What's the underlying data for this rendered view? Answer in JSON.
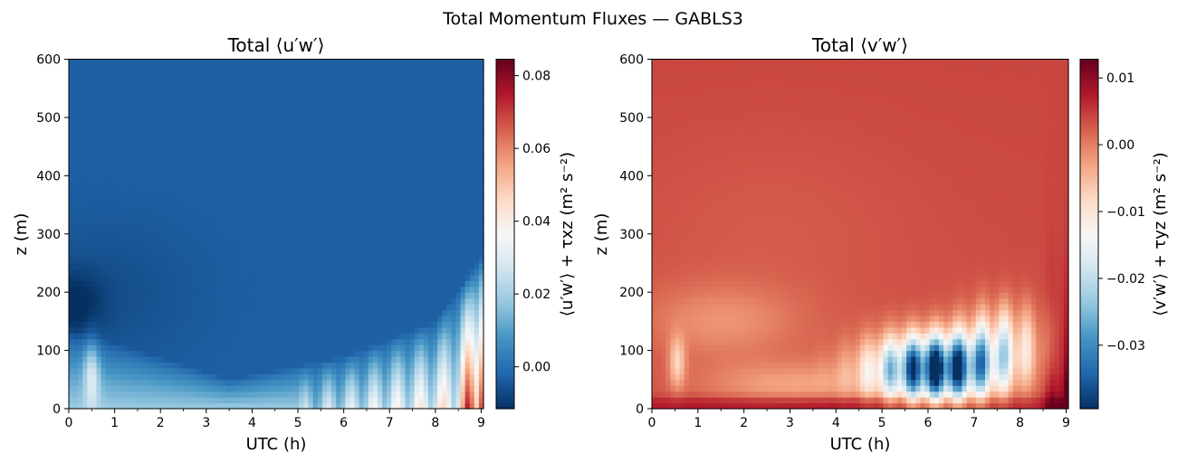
{
  "figure": {
    "suptitle": "Total Momentum Fluxes — GABLS3"
  },
  "chart_data": [
    {
      "type": "heatmap",
      "title": "Total ⟨u′w′⟩",
      "xlabel": "UTC (h)",
      "ylabel": "z (m)",
      "xlim": [
        0,
        9.05
      ],
      "ylim": [
        0,
        600
      ],
      "xticks": [
        0,
        1,
        2,
        3,
        4,
        5,
        6,
        7,
        8,
        9
      ],
      "yticks": [
        0,
        100,
        200,
        300,
        400,
        500,
        600
      ],
      "colormap": "RdBu_r",
      "colorbar": {
        "label": "⟨u′w′⟩ + τxz (m² s⁻²)",
        "vmin": -0.0115,
        "vmax": 0.0845,
        "ticks": [
          0.0,
          0.02,
          0.04,
          0.06,
          0.08
        ],
        "tick_labels": [
          "0.00",
          "0.02",
          "0.04",
          "0.06",
          "0.08"
        ]
      },
      "description_of_field": {
        "background_value": -0.003,
        "low_level_jet_minimum": {
          "utc_h": 0.2,
          "z_m": 180,
          "value": -0.011
        },
        "surface_positive_layer": {
          "value_range": [
            0.02,
            0.08
          ],
          "max_at": {
            "utc_h": 9.0,
            "z_m": 20
          }
        },
        "boundary_layer_top_m": {
          "0.0": 140,
          "3.5": 50,
          "6.0": 90,
          "8.0": 150,
          "9.0": 260
        }
      }
    },
    {
      "type": "heatmap",
      "title": "Total ⟨v′w′⟩",
      "xlabel": "UTC (h)",
      "ylabel": "z (m)",
      "xlim": [
        0,
        9.05
      ],
      "ylim": [
        0,
        600
      ],
      "xticks": [
        0,
        1,
        2,
        3,
        4,
        5,
        6,
        7,
        8,
        9
      ],
      "yticks": [
        0,
        100,
        200,
        300,
        400,
        500,
        600
      ],
      "colormap": "RdBu_r",
      "colorbar": {
        "label": "⟨v′w′⟩ + τyz (m² s⁻²)",
        "vmin": -0.0395,
        "vmax": 0.0128,
        "ticks": [
          0.01,
          0.0,
          -0.01,
          -0.02,
          -0.03
        ],
        "tick_labels": [
          "0.01",
          "0.00",
          "−0.01",
          "−0.02",
          "−0.03"
        ]
      },
      "description_of_field": {
        "background_value": 0.0035,
        "negative_core": {
          "utc_h": 6.2,
          "z_m": 70,
          "value": -0.039
        },
        "surface_positive_max": {
          "utc_h": 9.0,
          "z_m": 20,
          "value": 0.012
        }
      }
    }
  ],
  "colors": {
    "RdBu_r_stops": [
      "#053061",
      "#2166ac",
      "#4393c3",
      "#92c5de",
      "#d1e5f0",
      "#f7f7f7",
      "#fddbc7",
      "#f4a582",
      "#d6604d",
      "#b2182b",
      "#67001f"
    ]
  }
}
